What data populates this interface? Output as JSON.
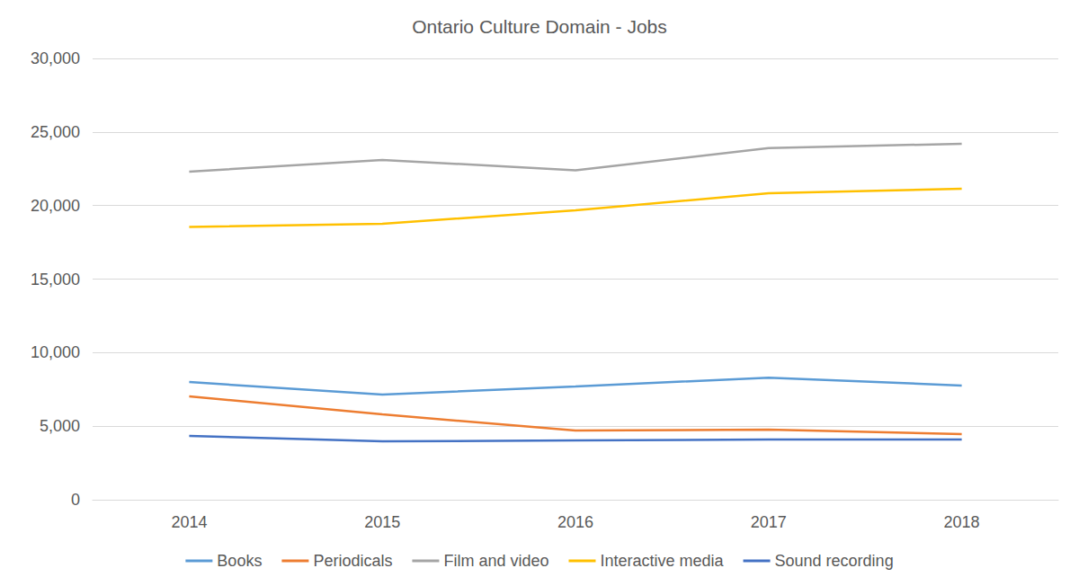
{
  "chart_data": {
    "type": "line",
    "title": "Ontario Culture Domain - Jobs",
    "categories": [
      "2014",
      "2015",
      "2016",
      "2017",
      "2018"
    ],
    "series": [
      {
        "name": "Books",
        "color": "#5b9bd5",
        "values": [
          8000,
          7150,
          7700,
          8300,
          7760
        ]
      },
      {
        "name": "Periodicals",
        "color": "#ed7d31",
        "values": [
          7030,
          5800,
          4700,
          4770,
          4460
        ]
      },
      {
        "name": "Film and video",
        "color": "#a5a5a5",
        "values": [
          22300,
          23100,
          22400,
          23900,
          24200
        ]
      },
      {
        "name": "Interactive media",
        "color": "#ffc000",
        "values": [
          18550,
          18760,
          19670,
          20830,
          21140
        ]
      },
      {
        "name": "Sound recording",
        "color": "#4472c4",
        "values": [
          4340,
          3970,
          4030,
          4090,
          4090
        ]
      }
    ],
    "ylim": [
      0,
      30000
    ],
    "yticks": [
      0,
      {
        "value": 5000,
        "label": "5,000"
      },
      {
        "value": 10000,
        "label": "10,000"
      },
      {
        "value": 15000,
        "label": "15,000"
      },
      {
        "value": 20000,
        "label": "20,000"
      },
      {
        "value": 25000,
        "label": "25,000"
      },
      {
        "value": 30000,
        "label": "30,000"
      }
    ],
    "grid": true,
    "legend": "bottom"
  }
}
